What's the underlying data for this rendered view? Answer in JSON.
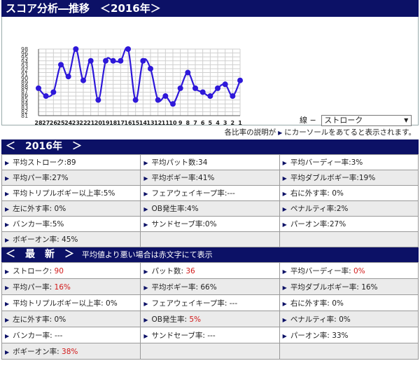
{
  "title": "スコア分析―推移　＜2016年＞",
  "line_selector": {
    "label": "線 −",
    "selected": "ストローク"
  },
  "note": {
    "before": "各比率の説明が",
    "after": "にカーソールをあてると表示されます。"
  },
  "colors": {
    "bar": "#0c1166",
    "line": "#2e18d9",
    "bad": "#d21a1a"
  },
  "chart_data": {
    "type": "line",
    "categories": [
      "28",
      "27",
      "26",
      "25",
      "24",
      "23",
      "22",
      "21",
      "20",
      "19",
      "18",
      "17",
      "16",
      "15",
      "14",
      "13",
      "12",
      "11",
      "10",
      "9",
      "8",
      "7",
      "6",
      "5",
      "4",
      "3",
      "2",
      "1"
    ],
    "series": [
      {
        "values": [
          88,
          86,
          87,
          94,
          91,
          98,
          90,
          95,
          85,
          95,
          95,
          95,
          98,
          85,
          95,
          93,
          85,
          86,
          84,
          88,
          92,
          88,
          87,
          86,
          88,
          89,
          86,
          90
        ]
      }
    ],
    "ytick_labels": [
      "98",
      "96",
      "95",
      "94",
      "93",
      "92",
      "91",
      "90",
      "89",
      "88",
      "87",
      "86",
      "85",
      "84",
      "83",
      "82",
      "81"
    ],
    "ylim": [
      81,
      98
    ],
    "grid": true
  },
  "section2016": {
    "title": "＜　2016年　＞",
    "rows": [
      [
        {
          "label": "平均ストローク:",
          "value": "89",
          "bad": false
        },
        {
          "label": "平均パット数:",
          "value": "34",
          "bad": false
        },
        {
          "label": "平均バーディー率:",
          "value": "3%",
          "bad": false
        }
      ],
      [
        {
          "label": "平均パー率:",
          "value": "27%",
          "bad": false
        },
        {
          "label": "平均ボギー率:",
          "value": "41%",
          "bad": false
        },
        {
          "label": "平均ダブルボギー率:",
          "value": "19%",
          "bad": false
        }
      ],
      [
        {
          "label": "平均トリプルボギー以上率:",
          "value": "5%",
          "bad": false
        },
        {
          "label": "フェアウェイキープ率:",
          "value": "---",
          "bad": false
        },
        {
          "label": "右に外す率:",
          "value": " 0%",
          "bad": false
        }
      ],
      [
        {
          "label": "左に外す率:",
          "value": " 0%",
          "bad": false
        },
        {
          "label": "OB発生率:",
          "value": "4%",
          "bad": false
        },
        {
          "label": "ペナルティ率:",
          "value": "2%",
          "bad": false
        }
      ],
      [
        {
          "label": "バンカー率:",
          "value": "5%",
          "bad": false
        },
        {
          "label": "サンドセーブ率:",
          "value": "0%",
          "bad": false
        },
        {
          "label": "パーオン率:",
          "value": "27%",
          "bad": false
        }
      ],
      [
        {
          "label": "ボギーオン率:",
          "value": " 45%",
          "bad": false
        },
        null,
        null
      ]
    ]
  },
  "sectionLatest": {
    "title": "＜　最　新　＞",
    "subtitle": "平均値より悪い場合は赤文字にて表示",
    "rows": [
      [
        {
          "label": "ストローク:",
          "value": " 90",
          "bad": true
        },
        {
          "label": "パット数:",
          "value": " 36",
          "bad": true
        },
        {
          "label": "平均バーディー率:",
          "value": " 0%",
          "bad": true
        }
      ],
      [
        {
          "label": "平均パー率:",
          "value": " 16%",
          "bad": true
        },
        {
          "label": "平均ボギー率:",
          "value": " 66%",
          "bad": false
        },
        {
          "label": "平均ダブルボギー率:",
          "value": " 16%",
          "bad": false
        }
      ],
      [
        {
          "label": "平均トリプルボギー以上率:",
          "value": " 0%",
          "bad": false
        },
        {
          "label": "フェアウェイキープ率:",
          "value": " ---",
          "bad": false
        },
        {
          "label": "右に外す率:",
          "value": " 0%",
          "bad": false
        }
      ],
      [
        {
          "label": "左に外す率:",
          "value": " 0%",
          "bad": false
        },
        {
          "label": "OB発生率:",
          "value": " 5%",
          "bad": true
        },
        {
          "label": "ペナルティ率:",
          "value": " 0%",
          "bad": false
        }
      ],
      [
        {
          "label": "バンカー率:",
          "value": " ---",
          "bad": false
        },
        {
          "label": "サンドセーブ率:",
          "value": " ---",
          "bad": false
        },
        {
          "label": "パーオン率:",
          "value": " 33%",
          "bad": false
        }
      ],
      [
        {
          "label": "ボギーオン率:",
          "value": " 38%",
          "bad": true
        },
        null,
        null
      ]
    ]
  }
}
